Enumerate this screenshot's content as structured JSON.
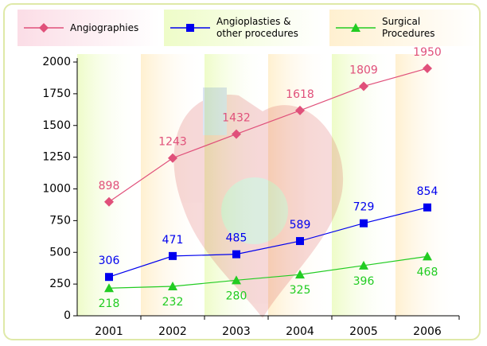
{
  "chart_data": {
    "type": "line",
    "categories": [
      "2001",
      "2002",
      "2003",
      "2004",
      "2005",
      "2006"
    ],
    "series": [
      {
        "name": "Angiographies",
        "color": "#e0507a",
        "marker": "diamond",
        "values": [
          898,
          1243,
          1432,
          1618,
          1809,
          1950
        ]
      },
      {
        "name": "Angioplasties & other procedures",
        "color": "#0000ee",
        "marker": "square",
        "values": [
          306,
          471,
          485,
          589,
          729,
          854
        ]
      },
      {
        "name": "Surgical Procedures",
        "color": "#22cc22",
        "marker": "triangle",
        "values": [
          218,
          232,
          280,
          325,
          396,
          468
        ]
      }
    ],
    "ylim": [
      0,
      2000
    ],
    "yticks": [
      0,
      250,
      500,
      750,
      1000,
      1250,
      1500,
      1750,
      2000
    ],
    "legend": "top"
  }
}
